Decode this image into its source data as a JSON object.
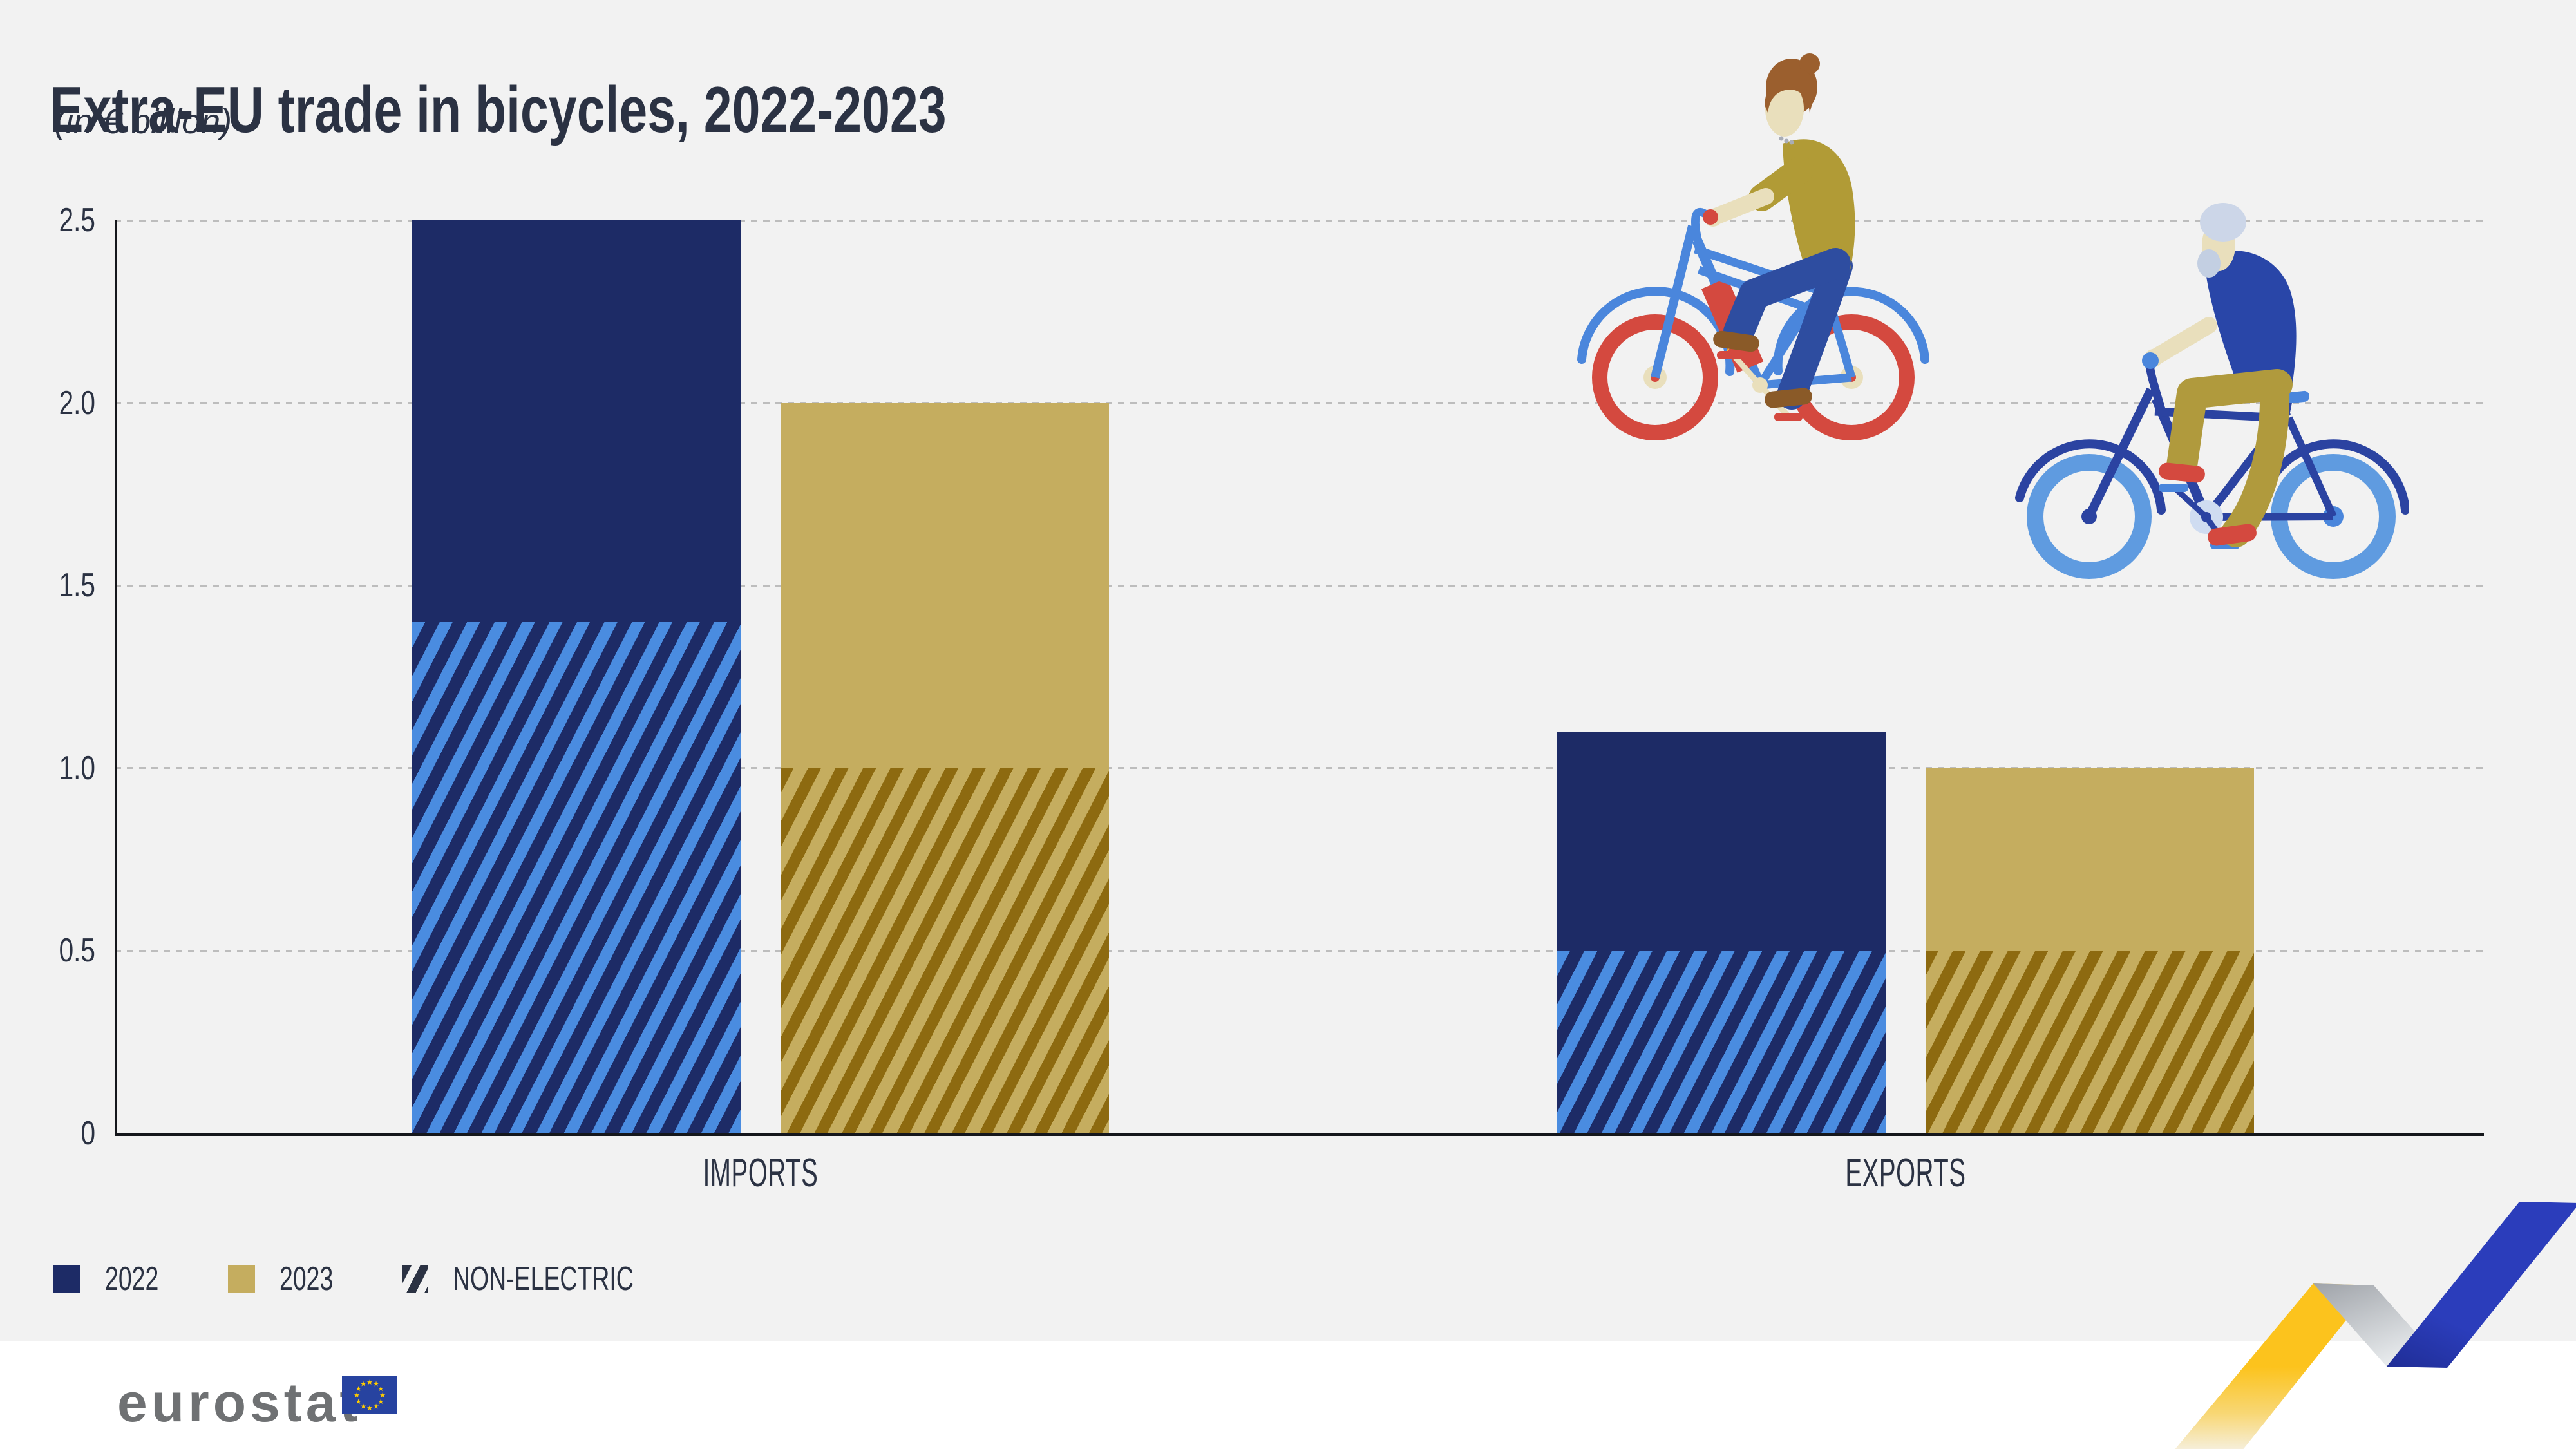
{
  "header": {
    "title": "Extra-EU trade in bicycles, 2022-2023",
    "subtitle": "(in € billion)"
  },
  "chart_data": {
    "type": "bar",
    "title": "Extra-EU trade in bicycles, 2022-2023",
    "unit": "€ billion",
    "categories": [
      "IMPORTS",
      "EXPORTS"
    ],
    "series": [
      {
        "name": "2022",
        "color": "#1d2b66",
        "hatch_color": "#4a8ce0",
        "totals": [
          2.5,
          1.1
        ],
        "non_electric": [
          1.4,
          0.5
        ]
      },
      {
        "name": "2023",
        "color": "#c5ad5f",
        "hatch_color": "#8d6a10",
        "totals": [
          2.0,
          1.0
        ],
        "non_electric": [
          1.0,
          0.5
        ]
      }
    ],
    "hatch_meaning": "NON-ELECTRIC",
    "ylim": [
      0,
      2.5
    ],
    "ytick_values": [
      0,
      0.5,
      1,
      1.5,
      2,
      2.5
    ],
    "ytick_labels": [
      "0",
      "0.5",
      "1.0",
      "1.5",
      "2.0",
      "2.5"
    ],
    "grid": "dashed horizontal gridlines",
    "legend_position": "bottom-left"
  },
  "legend": {
    "items": [
      {
        "label": "2022"
      },
      {
        "label": "2023"
      },
      {
        "label": "NON-ELECTRIC"
      }
    ]
  },
  "footer": {
    "brand": "eurostat"
  },
  "illustrations": {
    "left": "woman-riding-red-bicycle",
    "right": "elderly-man-riding-blue-bicycle"
  },
  "colors": {
    "bg": "#f2f2f2",
    "white": "#ffffff",
    "ink": "#2b3243",
    "grid": "#bdbdbd",
    "axis": "#15171c",
    "navy": "#1d2b66",
    "lightblue": "#4a8ce0",
    "gold": "#c5ad5f",
    "darkgold": "#8d6a10",
    "brandgray": "#6f7173",
    "flagblue": "#2743a0",
    "star": "#ffcc00",
    "ribbonYellow": "#fcc31d",
    "ribbonBlue": "#2b3dbb"
  }
}
